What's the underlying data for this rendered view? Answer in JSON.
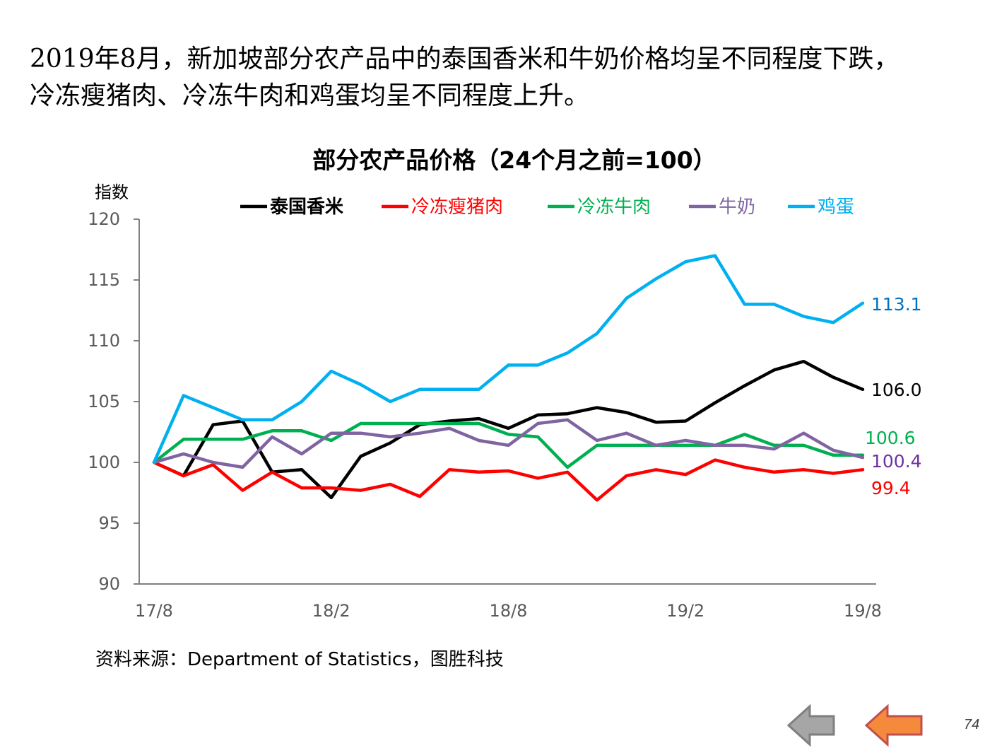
{
  "headline": {
    "line1": "2019年8月，新加坡部分农产品中的泰国香米和牛奶价格均呈不同程度下跌，",
    "line2": "冷冻瘦猪肉、冷冻牛肉和鸡蛋均呈不同程度上升。"
  },
  "source": "资料来源：Department of Statistics，图胜科技",
  "page_number": "74",
  "nav": {
    "back_icon": "arrow-left-icon",
    "prev_icon": "arrow-left-icon",
    "back_color": "#a6a6a6",
    "prev_color": "#f58a3c"
  },
  "chart_data": {
    "type": "line",
    "title": "部分农产品价格（24个月之前=100）",
    "ylabel": "指数",
    "xlabel": "",
    "ylim": [
      90,
      120
    ],
    "yticks": [
      90,
      95,
      100,
      105,
      110,
      115,
      120
    ],
    "x_count": 25,
    "xtick_labels": [
      {
        "index": 0,
        "label": "17/8"
      },
      {
        "index": 6,
        "label": "18/2"
      },
      {
        "index": 12,
        "label": "18/8"
      },
      {
        "index": 18,
        "label": "19/2"
      },
      {
        "index": 24,
        "label": "19/8"
      }
    ],
    "legend_position": "top",
    "series": [
      {
        "name": "泰国香米",
        "color": "#000000",
        "end_label": "106.0",
        "label_color": "#000000",
        "values": [
          100,
          98.9,
          103.1,
          103.4,
          99.2,
          99.4,
          97.1,
          100.5,
          101.6,
          103.1,
          103.4,
          103.6,
          102.8,
          103.9,
          104.0,
          104.5,
          104.1,
          103.3,
          103.4,
          104.9,
          106.3,
          107.6,
          108.3,
          107.0,
          106.0
        ]
      },
      {
        "name": "冷冻瘦猪肉",
        "color": "#ff0000",
        "end_label": "99.4",
        "label_color": "#ff0000",
        "values": [
          100,
          98.9,
          99.8,
          97.7,
          99.2,
          97.9,
          97.9,
          97.7,
          98.2,
          97.2,
          99.4,
          99.2,
          99.3,
          98.7,
          99.2,
          96.9,
          98.9,
          99.4,
          99.0,
          100.2,
          99.6,
          99.2,
          99.4,
          99.1,
          99.4
        ]
      },
      {
        "name": "冷冻牛肉",
        "color": "#00b050",
        "end_label": "100.6",
        "label_color": "#00b050",
        "values": [
          100,
          101.9,
          101.9,
          101.9,
          102.6,
          102.6,
          101.8,
          103.2,
          103.2,
          103.2,
          103.2,
          103.2,
          102.3,
          102.1,
          99.6,
          101.4,
          101.4,
          101.4,
          101.4,
          101.4,
          102.3,
          101.4,
          101.4,
          100.6,
          100.6
        ]
      },
      {
        "name": "牛奶",
        "color": "#8064a2",
        "end_label": "100.4",
        "label_color": "#7030a0",
        "values": [
          100,
          100.7,
          100.0,
          99.6,
          102.1,
          100.7,
          102.4,
          102.4,
          102.1,
          102.4,
          102.8,
          101.8,
          101.4,
          103.2,
          103.5,
          101.8,
          102.4,
          101.4,
          101.8,
          101.4,
          101.4,
          101.1,
          102.4,
          101.0,
          100.4
        ]
      },
      {
        "name": "鸡蛋",
        "color": "#00b0f0",
        "end_label": "113.1",
        "label_color": "#0070c0",
        "values": [
          100,
          105.5,
          104.5,
          103.5,
          103.5,
          105.0,
          107.5,
          106.4,
          105.0,
          106.0,
          106.0,
          106.0,
          108.0,
          108.0,
          109.0,
          110.6,
          113.5,
          115.1,
          116.5,
          117.0,
          113.0,
          113.0,
          112.0,
          111.5,
          113.1
        ]
      }
    ]
  }
}
